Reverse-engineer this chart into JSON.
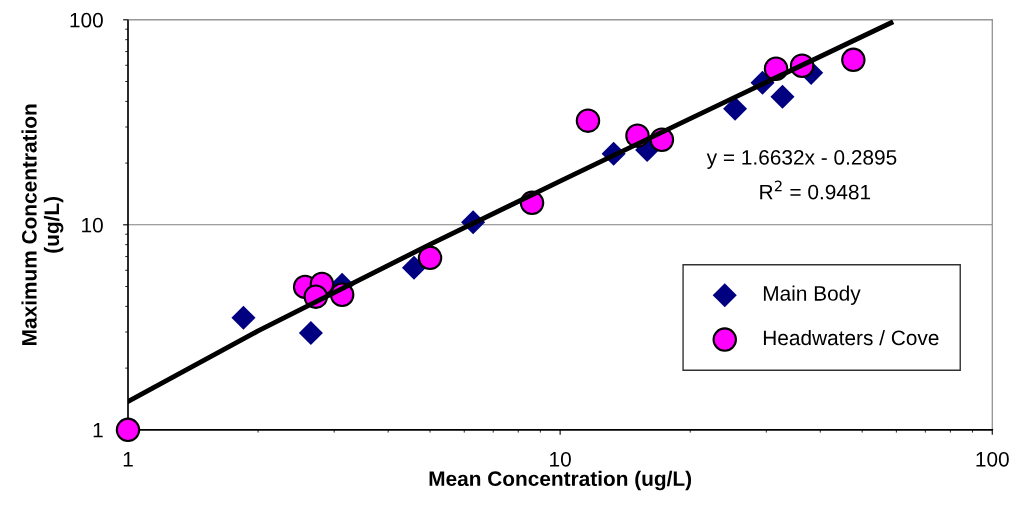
{
  "chart_data": {
    "type": "scatter",
    "xlabel": "Mean Concentration (ug/L)",
    "ylabel": "Maximum Concentration\n(ug/L)",
    "log": "xy",
    "xlim": [
      1,
      100
    ],
    "ylim": [
      1,
      100
    ],
    "xticks": [
      1,
      10,
      100
    ],
    "yticks": [
      1,
      10,
      100
    ],
    "grid": "y",
    "legend": "lower right",
    "series": [
      {
        "name": "Main Body",
        "color": "#000080",
        "marker": "diamond",
        "x": [
          1.85,
          2.65,
          3.13,
          4.59,
          6.29,
          13.3,
          15.9,
          25.4,
          29.4,
          32.7,
          38.1
        ],
        "values": [
          3.52,
          2.97,
          5.1,
          6.17,
          10.3,
          22.2,
          23.2,
          36.8,
          49.3,
          42.1,
          55.1
        ]
      },
      {
        "name": "Headwaters / Cove",
        "color": "#ff00ff",
        "marker": "circle",
        "x": [
          1,
          2.57,
          2.81,
          2.72,
          3.13,
          5.0,
          8.61,
          11.6,
          15.1,
          17.2,
          31.6,
          36.3,
          47.7
        ],
        "values": [
          1,
          4.98,
          5.15,
          4.46,
          4.56,
          6.9,
          12.8,
          32.2,
          27.2,
          26.0,
          57.7,
          59.7,
          63.8
        ]
      },
      {
        "type": "line",
        "color": "#000000",
        "marker": "none",
        "line_style": "solid",
        "x": [
          1,
          2,
          5,
          10,
          20,
          40,
          58.3
        ],
        "values": [
          1.374,
          3.037,
          8.027,
          16.34,
          32.97,
          66.24,
          96.67
        ]
      }
    ],
    "annotations": [
      "y = 1.6632x - 0.2895",
      "R$^{2}$ = 0.9481"
    ]
  }
}
